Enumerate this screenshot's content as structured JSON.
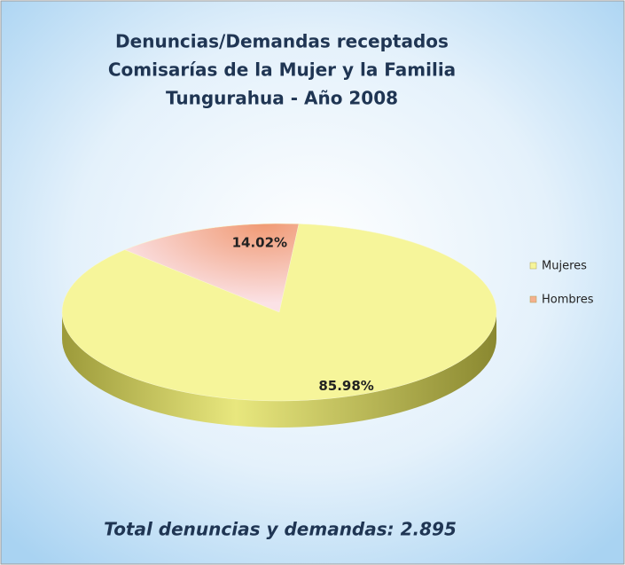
{
  "chart_data": {
    "type": "pie",
    "title": [
      "Denuncias/Demandas receptados",
      "Comisarías de la Mujer y la Familia",
      "Tungurahua - Año 2008"
    ],
    "categories": [
      "Mujeres",
      "Hombres"
    ],
    "values": [
      85.98,
      14.02
    ],
    "value_labels": [
      "85.98%",
      "14.02%"
    ],
    "colors": [
      "#f6f59a",
      "#f4b08e"
    ],
    "legend": "right",
    "annotation": "Total denuncias y demandas: 2.895"
  }
}
